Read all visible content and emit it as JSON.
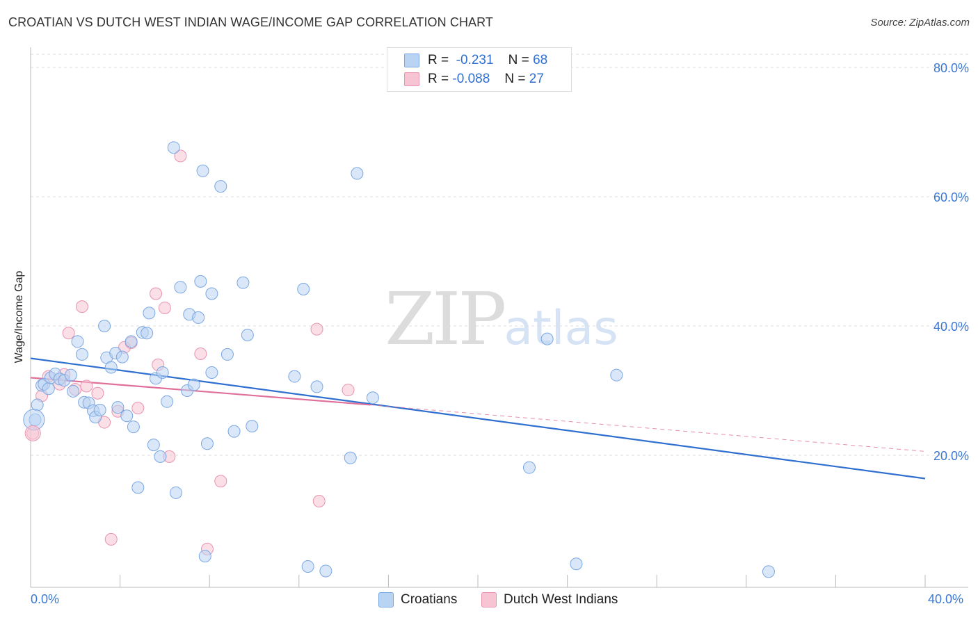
{
  "header": {
    "title": "CROATIAN VS DUTCH WEST INDIAN WAGE/INCOME GAP CORRELATION CHART",
    "source": "Source: ZipAtlas.com"
  },
  "watermark": {
    "zip": "ZIP",
    "atlas": "atlas"
  },
  "legend": {
    "rows": [
      {
        "r_label": "R =",
        "r_value": "-0.231",
        "n_label": "N =",
        "n_value": "68",
        "color": "#b9d3f3"
      },
      {
        "r_label": "R =",
        "r_value": "-0.088",
        "n_label": "N =",
        "n_value": "27",
        "color": "#f7c4d4"
      }
    ]
  },
  "bottom_legend": {
    "items": [
      {
        "label": "Croatians",
        "color": "#b9d3f3"
      },
      {
        "label": "Dutch West Indians",
        "color": "#f7c4d4"
      }
    ]
  },
  "colors": {
    "blue_fill": "#b9d3f3",
    "blue_stroke": "#7aa7e3",
    "blue_line": "#2e6fd0",
    "pink_fill": "#f7c4d4",
    "pink_stroke": "#e993b0",
    "pink_line": "#e0709a",
    "grid": "#dddddd",
    "axis_text": "#3a78d4"
  },
  "chart_data": {
    "type": "scatter",
    "title": "CROATIAN VS DUTCH WEST INDIAN WAGE/INCOME GAP CORRELATION CHART",
    "xlabel": "",
    "ylabel": "Wage/Income Gap",
    "xlim": [
      0,
      40
    ],
    "ylim": [
      0,
      85
    ],
    "x_tick_labels": [
      "0.0%",
      "40.0%"
    ],
    "y_ticks": [
      20,
      40,
      60,
      80
    ],
    "y_tick_labels": [
      "20.0%",
      "40.0%",
      "60.0%",
      "80.0%"
    ],
    "grid": true,
    "series": [
      {
        "name": "Croatians",
        "r": -0.231,
        "n": 68,
        "trend": {
          "x0": 0,
          "y0": 35.0,
          "x1": 40,
          "y1": 16.4
        },
        "points": [
          [
            0.2,
            25.5
          ],
          [
            0.3,
            27.8
          ],
          [
            0.5,
            30.8
          ],
          [
            0.6,
            31.0
          ],
          [
            0.8,
            30.3
          ],
          [
            0.9,
            32.0
          ],
          [
            1.1,
            32.6
          ],
          [
            1.3,
            31.8
          ],
          [
            1.5,
            31.6
          ],
          [
            1.8,
            32.4
          ],
          [
            1.9,
            29.9
          ],
          [
            2.1,
            37.6
          ],
          [
            2.3,
            35.6
          ],
          [
            2.4,
            28.2
          ],
          [
            2.6,
            28.1
          ],
          [
            2.8,
            26.9
          ],
          [
            2.9,
            25.9
          ],
          [
            3.1,
            27.0
          ],
          [
            3.3,
            40.0
          ],
          [
            3.4,
            35.1
          ],
          [
            3.6,
            33.6
          ],
          [
            3.8,
            35.8
          ],
          [
            3.9,
            27.4
          ],
          [
            4.1,
            35.2
          ],
          [
            4.3,
            26.1
          ],
          [
            4.5,
            37.6
          ],
          [
            4.6,
            24.4
          ],
          [
            4.8,
            15.0
          ],
          [
            5.0,
            39.0
          ],
          [
            5.2,
            38.9
          ],
          [
            5.3,
            42.0
          ],
          [
            5.5,
            21.6
          ],
          [
            5.6,
            31.9
          ],
          [
            5.8,
            19.8
          ],
          [
            5.9,
            32.8
          ],
          [
            6.1,
            28.3
          ],
          [
            6.4,
            67.6
          ],
          [
            6.5,
            14.2
          ],
          [
            6.7,
            46.0
          ],
          [
            7.0,
            30.0
          ],
          [
            7.1,
            41.8
          ],
          [
            7.3,
            30.9
          ],
          [
            7.5,
            41.3
          ],
          [
            7.6,
            46.9
          ],
          [
            7.7,
            64.0
          ],
          [
            7.8,
            4.4
          ],
          [
            8.1,
            32.8
          ],
          [
            8.1,
            45.0
          ],
          [
            8.5,
            61.6
          ],
          [
            8.8,
            35.6
          ],
          [
            9.1,
            23.7
          ],
          [
            9.5,
            46.7
          ],
          [
            9.7,
            38.6
          ],
          [
            9.9,
            24.5
          ],
          [
            11.8,
            32.2
          ],
          [
            12.2,
            45.7
          ],
          [
            12.4,
            2.8
          ],
          [
            12.8,
            30.6
          ],
          [
            13.2,
            2.1
          ],
          [
            14.3,
            19.6
          ],
          [
            14.6,
            63.6
          ],
          [
            15.3,
            28.9
          ],
          [
            23.1,
            38.0
          ],
          [
            22.3,
            18.1
          ],
          [
            24.4,
            3.2
          ],
          [
            26.2,
            32.4
          ],
          [
            33.0,
            2.0
          ],
          [
            7.9,
            21.8
          ]
        ]
      },
      {
        "name": "Dutch West Indians",
        "r": -0.088,
        "n": 27,
        "trend": {
          "x0": 0,
          "y0": 32.0,
          "x1": 15.2,
          "y1": 27.8
        },
        "trend_extension": {
          "x0": 15.2,
          "y0": 27.8,
          "x1": 40,
          "y1": 20.6
        },
        "points": [
          [
            0.1,
            23.4
          ],
          [
            0.5,
            29.2
          ],
          [
            0.8,
            32.2
          ],
          [
            1.3,
            31.0
          ],
          [
            1.5,
            32.5
          ],
          [
            1.7,
            38.9
          ],
          [
            2.0,
            30.2
          ],
          [
            2.3,
            43.0
          ],
          [
            2.5,
            30.7
          ],
          [
            3.0,
            29.6
          ],
          [
            3.3,
            25.1
          ],
          [
            3.6,
            7.0
          ],
          [
            3.9,
            26.8
          ],
          [
            4.2,
            36.7
          ],
          [
            4.5,
            37.4
          ],
          [
            4.8,
            27.3
          ],
          [
            5.6,
            45.0
          ],
          [
            5.7,
            34.0
          ],
          [
            6.0,
            42.8
          ],
          [
            6.2,
            19.8
          ],
          [
            6.7,
            66.3
          ],
          [
            7.6,
            35.7
          ],
          [
            7.9,
            5.5
          ],
          [
            8.5,
            16.0
          ],
          [
            12.8,
            39.5
          ],
          [
            12.9,
            12.9
          ],
          [
            14.2,
            30.1
          ]
        ]
      }
    ]
  }
}
